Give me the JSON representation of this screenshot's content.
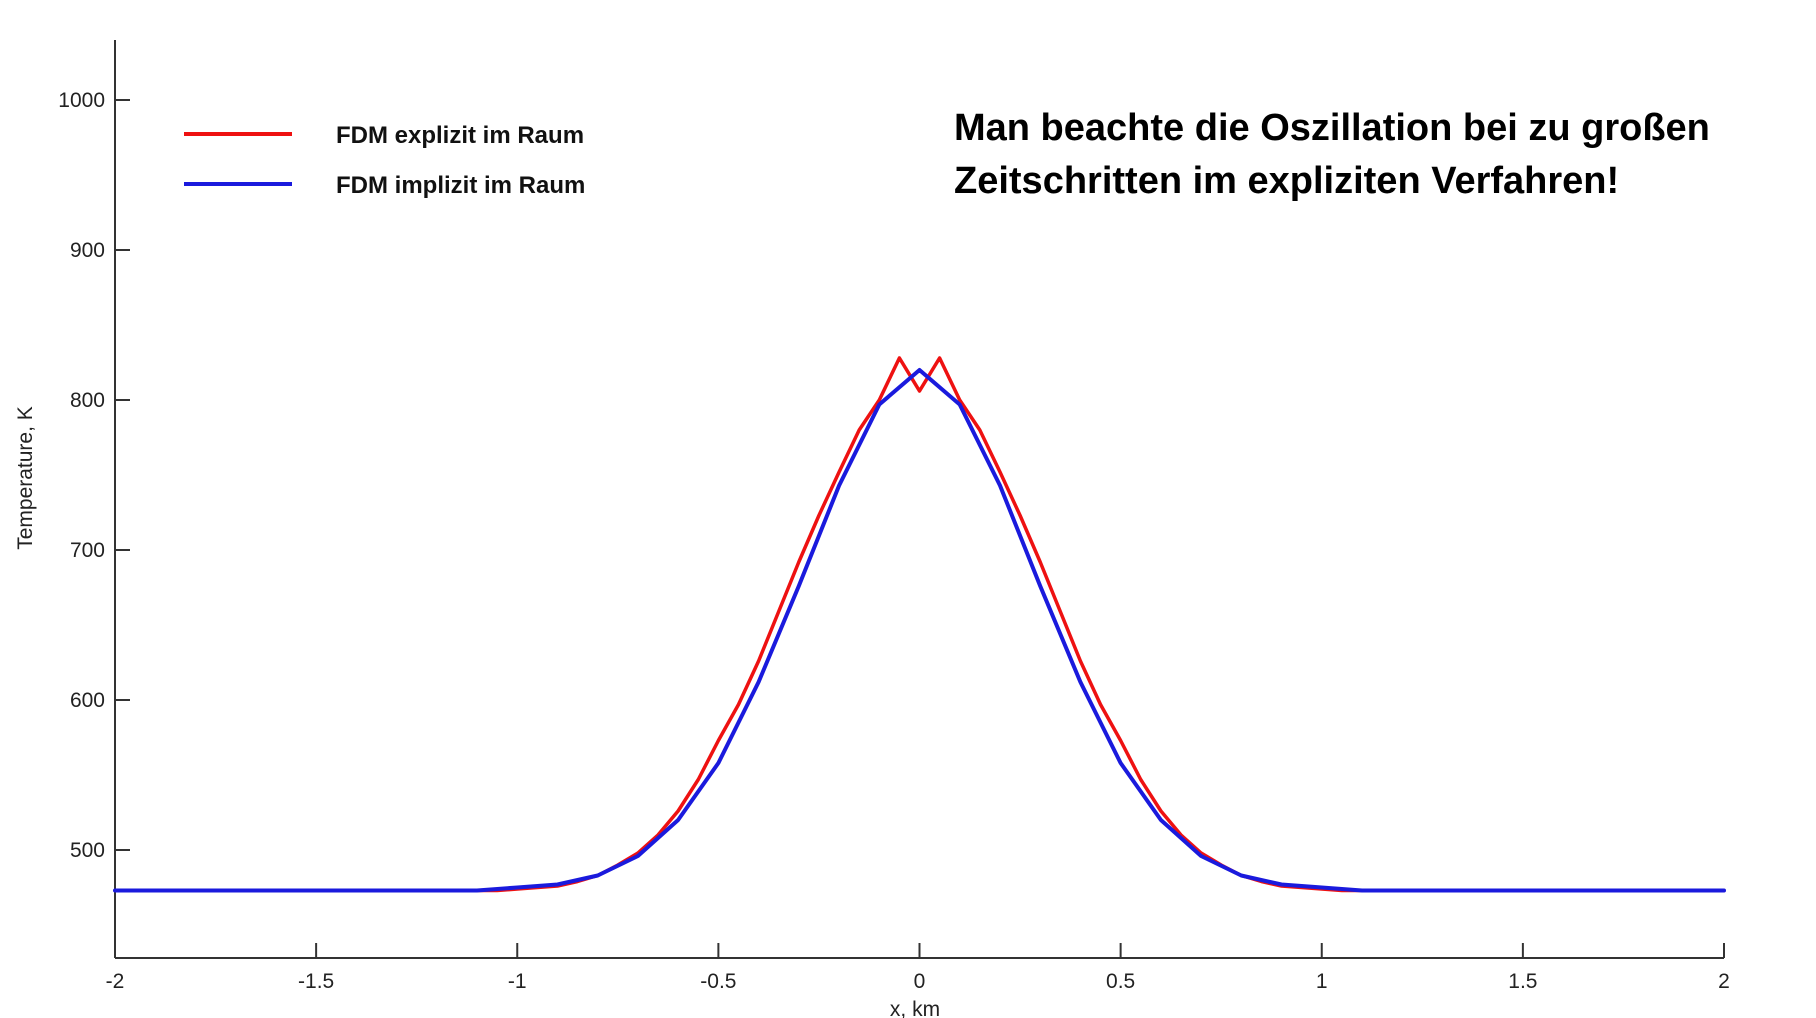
{
  "chart_data": {
    "type": "line",
    "title": "",
    "xlabel": "x, km",
    "ylabel": "Temperature, K",
    "xlim": [
      -2,
      2
    ],
    "ylim": [
      428,
      1040
    ],
    "x_ticks": [
      -2,
      -1.5,
      -1,
      -0.5,
      0,
      0.5,
      1,
      1.5,
      2
    ],
    "x_tick_labels": [
      "-2",
      "-1.5",
      "-1",
      "-0.5",
      "0",
      "0.5",
      "1",
      "1.5",
      "2"
    ],
    "y_ticks": [
      500,
      600,
      700,
      800,
      900,
      1000
    ],
    "y_tick_labels": [
      "500",
      "600",
      "700",
      "800",
      "900",
      "1000"
    ],
    "grid": false,
    "legend_position": "top-left",
    "series": [
      {
        "name": "FDM explizit im Raum",
        "color": "#ee1111",
        "x": [
          -2,
          -1.1,
          -1.05,
          -1.0,
          -0.95,
          -0.9,
          -0.85,
          -0.8,
          -0.75,
          -0.7,
          -0.65,
          -0.6,
          -0.55,
          -0.5,
          -0.45,
          -0.4,
          -0.35,
          -0.3,
          -0.25,
          -0.2,
          -0.15,
          -0.1,
          -0.05,
          0,
          0.05,
          0.1,
          0.15,
          0.2,
          0.25,
          0.3,
          0.35,
          0.4,
          0.45,
          0.5,
          0.55,
          0.6,
          0.65,
          0.7,
          0.75,
          0.8,
          0.85,
          0.9,
          0.95,
          1.0,
          1.05,
          1.1,
          2
        ],
        "y": [
          473,
          473,
          473,
          474,
          475,
          476,
          479,
          483,
          490,
          498,
          510,
          526,
          547,
          573,
          597,
          626,
          659,
          692,
          723,
          752,
          780,
          800,
          828,
          806,
          828,
          800,
          780,
          752,
          723,
          692,
          659,
          626,
          597,
          573,
          547,
          526,
          510,
          498,
          490,
          483,
          479,
          476,
          475,
          474,
          473,
          473,
          473
        ]
      },
      {
        "name": "FDM implizit im Raum",
        "color": "#1a1add",
        "x": [
          -2,
          -1.2,
          -1.1,
          -1.0,
          -0.9,
          -0.8,
          -0.7,
          -0.6,
          -0.5,
          -0.4,
          -0.3,
          -0.2,
          -0.1,
          0,
          0.1,
          0.2,
          0.3,
          0.4,
          0.5,
          0.6,
          0.7,
          0.8,
          0.9,
          1.0,
          1.1,
          1.2,
          2
        ],
        "y": [
          473,
          473,
          473,
          475,
          477,
          483,
          496,
          520,
          558,
          612,
          676,
          743,
          797,
          820,
          797,
          743,
          676,
          612,
          558,
          520,
          496,
          483,
          477,
          475,
          473,
          473,
          473
        ]
      }
    ],
    "annotation": [
      "Man beachte die Oszillation bei zu großen",
      "Zeitschritten im expliziten Verfahren!"
    ]
  }
}
